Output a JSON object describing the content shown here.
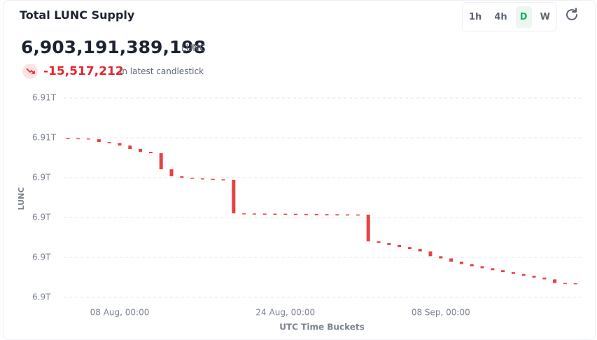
{
  "header": {
    "title": "Total LUNC Supply",
    "buttons": [
      "1h",
      "4h",
      "D",
      "W"
    ],
    "supply": "6,903,191,389,198",
    "unit": "LUNC",
    "change": "-15,517,212",
    "change_note": "in latest candlestick"
  },
  "chart_data": {
    "type": "candlestick",
    "y_label": "LUNC",
    "x_label": "UTC Time Buckets",
    "color": "#e84142",
    "grid": true,
    "categories": [
      null,
      null,
      null,
      null,
      null,
      "08 Aug, 00:00",
      null,
      null,
      null,
      null,
      null,
      null,
      null,
      null,
      null,
      null,
      null,
      null,
      null,
      null,
      null,
      "24 Aug, 00:00",
      null,
      null,
      null,
      null,
      null,
      null,
      null,
      null,
      null,
      null,
      null,
      null,
      null,
      null,
      "08 Sep, 00:00",
      null,
      null,
      null,
      null,
      null,
      null,
      null,
      null,
      null,
      null,
      null,
      null,
      null
    ],
    "open": [
      6910500000000,
      6910480000000,
      6910465000000,
      6910430000000,
      6910290000000,
      6910240000000,
      6910114000000,
      6909939000000,
      6909798000000,
      6909728000000,
      6908921000000,
      6908570000000,
      6908500000000,
      6908465000000,
      6908440000000,
      6908420000000,
      6908395000000,
      6906711000000,
      6906705000000,
      6906700000000,
      6906695000000,
      6906690000000,
      6906685000000,
      6906680000000,
      6906675000000,
      6906670000000,
      6906665000000,
      6906660000000,
      6906655000000,
      6906645000000,
      6905307000000,
      6905230000000,
      6905130000000,
      6905020000000,
      6904920000000,
      6904800000000,
      6904560000000,
      6904450000000,
      6904290000000,
      6904170000000,
      6904060000000,
      6903960000000,
      6903860000000,
      6903760000000,
      6903670000000,
      6903580000000,
      6903490000000,
      6903400000000,
      6903217000000,
      6903206906410
    ],
    "close": [
      6910480000000,
      6910465000000,
      6910430000000,
      6910290000000,
      6910240000000,
      6910114000000,
      6909939000000,
      6909798000000,
      6909728000000,
      6908921000000,
      6908570000000,
      6908500000000,
      6908465000000,
      6908440000000,
      6908420000000,
      6908395000000,
      6906711000000,
      6906705000000,
      6906700000000,
      6906695000000,
      6906690000000,
      6906685000000,
      6906680000000,
      6906675000000,
      6906670000000,
      6906665000000,
      6906660000000,
      6906655000000,
      6906645000000,
      6905307000000,
      6905230000000,
      6905130000000,
      6905020000000,
      6904920000000,
      6904800000000,
      6904560000000,
      6904450000000,
      6904290000000,
      6904170000000,
      6904060000000,
      6903960000000,
      6903860000000,
      6903760000000,
      6903670000000,
      6903580000000,
      6903490000000,
      6903400000000,
      6903217000000,
      6903206906410,
      6903191389198
    ],
    "ylim": [
      6902500000000,
      6912500000000
    ],
    "yticks": [
      {
        "value": 6902500000000,
        "label": "6.9T"
      },
      {
        "value": 6904500000000,
        "label": "6.9T"
      },
      {
        "value": 6906500000000,
        "label": "6.9T"
      },
      {
        "value": 6908500000000,
        "label": "6.9T"
      },
      {
        "value": 6910500000000,
        "label": "6.91T"
      },
      {
        "value": 6912500000000,
        "label": "6.91T"
      }
    ]
  }
}
